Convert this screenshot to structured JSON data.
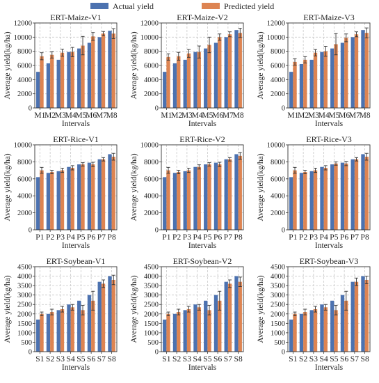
{
  "legend": {
    "placement": "top-center",
    "items": [
      {
        "label": "Actual yield",
        "color": "#4C72B0"
      },
      {
        "label": "Predicted yield",
        "color": "#DD8452"
      }
    ]
  },
  "chart_data": [
    {
      "type": "bar",
      "title": "ERT-Maize-V1",
      "xlabel": "Intervals",
      "ylabel": "Average yield(kg/ha)",
      "ylim": [
        0,
        12000
      ],
      "yticks": [
        0,
        2000,
        4000,
        6000,
        8000,
        10000,
        12000
      ],
      "grid": true,
      "categories": [
        "M1",
        "M2",
        "M3",
        "M4",
        "M5",
        "M6",
        "M7",
        "M8"
      ],
      "series": [
        {
          "name": "Actual yield",
          "values": [
            5100,
            6300,
            6800,
            7900,
            8400,
            9200,
            10000,
            10900
          ]
        },
        {
          "name": "Predicted yield",
          "values": [
            7300,
            7500,
            7800,
            7900,
            8800,
            10100,
            10500,
            10500
          ],
          "errors": [
            500,
            450,
            500,
            650,
            1300,
            550,
            300,
            700
          ]
        }
      ]
    },
    {
      "type": "bar",
      "title": "ERT-Maize-V2",
      "xlabel": "Intervals",
      "ylabel": "Average yield(kg/ha)",
      "ylim": [
        0,
        12000
      ],
      "yticks": [
        0,
        2000,
        4000,
        6000,
        8000,
        10000,
        12000
      ],
      "grid": true,
      "categories": [
        "M1",
        "M2",
        "M3",
        "M4",
        "M5",
        "M6",
        "M7",
        "M8"
      ],
      "series": [
        {
          "name": "Actual yield",
          "values": [
            5100,
            6300,
            6800,
            7900,
            8400,
            9200,
            10000,
            11000
          ]
        },
        {
          "name": "Predicted yield",
          "values": [
            7200,
            7300,
            7700,
            7900,
            8900,
            10000,
            10400,
            10600
          ],
          "errors": [
            450,
            550,
            550,
            850,
            1100,
            450,
            350,
            650
          ]
        }
      ]
    },
    {
      "type": "bar",
      "title": "ERT-Maize-V3",
      "xlabel": "Intervals",
      "ylabel": "Average yield(kg/ha)",
      "ylim": [
        0,
        12000
      ],
      "yticks": [
        0,
        2000,
        4000,
        6000,
        8000,
        10000,
        12000
      ],
      "grid": true,
      "categories": [
        "M1",
        "M2",
        "M3",
        "M4",
        "M5",
        "M6",
        "M7",
        "M8"
      ],
      "series": [
        {
          "name": "Actual yield",
          "values": [
            5100,
            6200,
            6800,
            7900,
            8400,
            9200,
            10000,
            11000
          ]
        },
        {
          "name": "Predicted yield",
          "values": [
            6500,
            6800,
            7800,
            8000,
            9000,
            9900,
            10400,
            10600
          ],
          "errors": [
            450,
            450,
            450,
            700,
            1500,
            550,
            350,
            700
          ]
        }
      ]
    },
    {
      "type": "bar",
      "title": "ERT-Rice-V1",
      "xlabel": "Intervals",
      "ylabel": "Average yield(kg/ha)",
      "ylim": [
        0,
        10000
      ],
      "yticks": [
        0,
        2000,
        4000,
        6000,
        8000,
        10000
      ],
      "grid": true,
      "categories": [
        "P1",
        "P2",
        "P3",
        "P4",
        "P5",
        "P6",
        "P7",
        "P8"
      ],
      "series": [
        {
          "name": "Actual yield",
          "values": [
            6200,
            6700,
            6900,
            7400,
            7700,
            7900,
            8300,
            8900
          ]
        },
        {
          "name": "Predicted yield",
          "values": [
            7000,
            6800,
            7000,
            7300,
            7700,
            7700,
            8300,
            8600
          ],
          "errors": [
            350,
            200,
            250,
            250,
            200,
            250,
            200,
            400
          ]
        }
      ]
    },
    {
      "type": "bar",
      "title": "ERT-Rice-V2",
      "xlabel": "Intervals",
      "ylabel": "Average yield(kg/ha)",
      "ylim": [
        0,
        10000
      ],
      "yticks": [
        0,
        2000,
        4000,
        6000,
        8000,
        10000
      ],
      "grid": true,
      "categories": [
        "P1",
        "P2",
        "P3",
        "P4",
        "P5",
        "P6",
        "P7",
        "P8"
      ],
      "series": [
        {
          "name": "Actual yield",
          "values": [
            6200,
            6700,
            6900,
            7400,
            7700,
            7900,
            8300,
            8900
          ]
        },
        {
          "name": "Predicted yield",
          "values": [
            7000,
            6800,
            7000,
            7400,
            7700,
            7700,
            8300,
            8700
          ],
          "errors": [
            350,
            200,
            250,
            250,
            200,
            250,
            200,
            400
          ]
        }
      ]
    },
    {
      "type": "bar",
      "title": "ERT-Rice-V3",
      "xlabel": "Intervals",
      "ylabel": "Average yield(kg/ha)",
      "ylim": [
        0,
        10000
      ],
      "yticks": [
        0,
        2000,
        4000,
        6000,
        8000,
        10000
      ],
      "grid": true,
      "categories": [
        "P1",
        "P2",
        "P3",
        "P4",
        "P5",
        "P6",
        "P7",
        "P8"
      ],
      "series": [
        {
          "name": "Actual yield",
          "values": [
            6200,
            6700,
            6900,
            7400,
            7700,
            7900,
            8300,
            8900
          ]
        },
        {
          "name": "Predicted yield",
          "values": [
            7000,
            6800,
            7000,
            7300,
            7800,
            7800,
            8300,
            8600
          ],
          "errors": [
            350,
            200,
            250,
            250,
            200,
            250,
            200,
            400
          ]
        }
      ]
    },
    {
      "type": "bar",
      "title": "ERT-Soybean-V1",
      "xlabel": "Intervals",
      "ylabel": "Average yield(kg/ha)",
      "ylim": [
        0,
        4500
      ],
      "yticks": [
        0,
        500,
        1000,
        1500,
        2000,
        2500,
        3000,
        3500,
        4000,
        4500
      ],
      "grid": true,
      "categories": [
        "S1",
        "S2",
        "S3",
        "S4",
        "S5",
        "S6",
        "S7",
        "S8"
      ],
      "series": [
        {
          "name": "Actual yield",
          "values": [
            1700,
            2000,
            2200,
            2500,
            2700,
            3000,
            3700,
            4000
          ]
        },
        {
          "name": "Predicted yield",
          "values": [
            2000,
            2100,
            2250,
            2350,
            2200,
            2700,
            3600,
            3800
          ],
          "errors": [
            100,
            150,
            150,
            150,
            250,
            500,
            200,
            250
          ]
        }
      ]
    },
    {
      "type": "bar",
      "title": "ERT-Soybean-V2",
      "xlabel": "Intervals",
      "ylabel": "Average yield(kg/ha)",
      "ylim": [
        0,
        4500
      ],
      "yticks": [
        0,
        500,
        1000,
        1500,
        2000,
        2500,
        3000,
        3500,
        4000,
        4500
      ],
      "grid": true,
      "categories": [
        "S1",
        "S2",
        "S3",
        "S4",
        "S5",
        "S6",
        "S7",
        "S8"
      ],
      "series": [
        {
          "name": "Actual yield",
          "values": [
            1700,
            2000,
            2200,
            2500,
            2700,
            3000,
            3700,
            4000
          ]
        },
        {
          "name": "Predicted yield",
          "values": [
            2000,
            2100,
            2250,
            2350,
            2200,
            2700,
            3600,
            3700
          ],
          "errors": [
            100,
            150,
            150,
            150,
            250,
            500,
            200,
            250
          ]
        }
      ]
    },
    {
      "type": "bar",
      "title": "ERT-Soybean-V3",
      "xlabel": "Intervals",
      "ylabel": "Average yield(kg/ha)",
      "ylim": [
        0,
        4500
      ],
      "yticks": [
        0,
        500,
        1000,
        1500,
        2000,
        2500,
        3000,
        3500,
        4000,
        4500
      ],
      "grid": true,
      "categories": [
        "S1",
        "S2",
        "S3",
        "S4",
        "S5",
        "S6",
        "S7",
        "S8"
      ],
      "series": [
        {
          "name": "Actual yield",
          "values": [
            1700,
            2000,
            2200,
            2500,
            2700,
            3000,
            3700,
            4000
          ]
        },
        {
          "name": "Predicted yield",
          "values": [
            2000,
            2100,
            2250,
            2350,
            2200,
            2700,
            3700,
            3800
          ],
          "errors": [
            100,
            150,
            150,
            150,
            250,
            500,
            200,
            200
          ]
        }
      ]
    }
  ]
}
